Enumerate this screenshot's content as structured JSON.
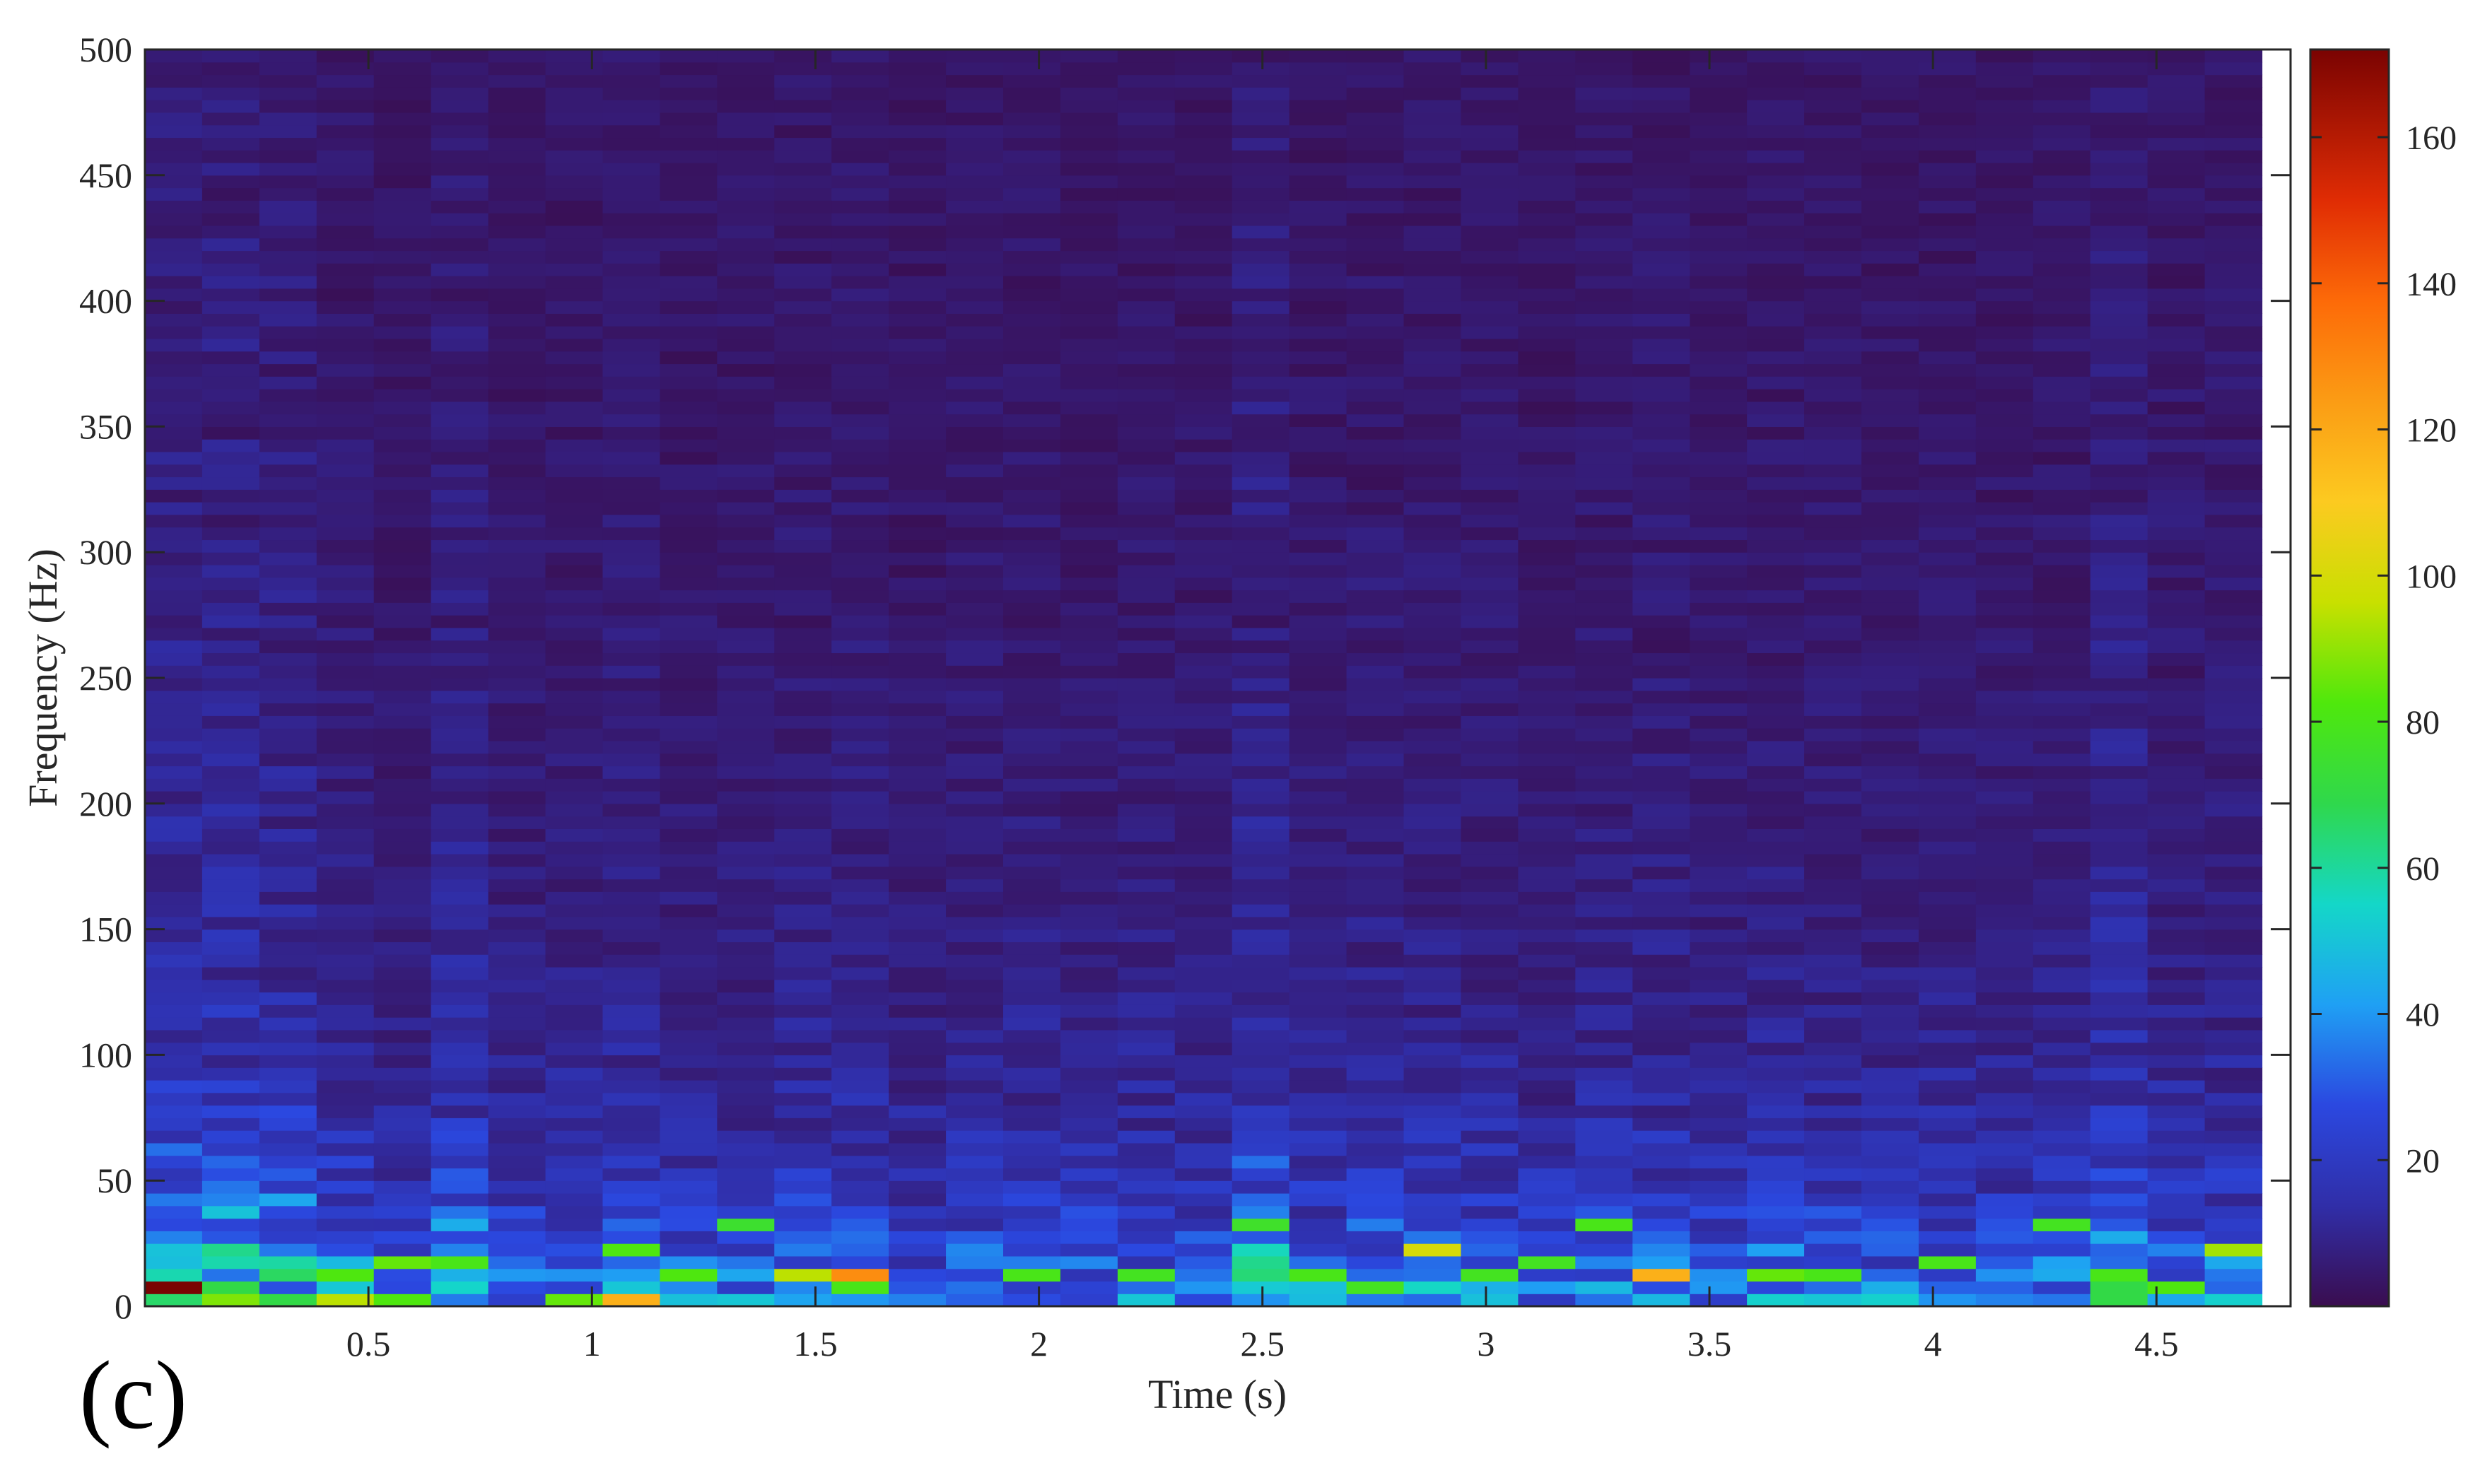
{
  "chart_data": {
    "type": "heatmap",
    "title": "",
    "xlabel": "Time (s)",
    "ylabel": "Frequency (Hz)",
    "xlim": [
      0.0,
      4.8
    ],
    "ylim": [
      0,
      500
    ],
    "xticks": [
      0.5,
      1,
      1.5,
      2,
      2.5,
      3,
      3.5,
      4,
      4.5
    ],
    "xtick_labels": [
      "0.5",
      "1",
      "1.5",
      "2",
      "2.5",
      "3",
      "3.5",
      "4",
      "4.5"
    ],
    "yticks": [
      0,
      50,
      100,
      150,
      200,
      250,
      300,
      350,
      400,
      450,
      500
    ],
    "ytick_labels": [
      "0",
      "50",
      "100",
      "150",
      "200",
      "250",
      "300",
      "350",
      "400",
      "450",
      "500"
    ],
    "colormap": "jet",
    "colorbar": {
      "range": [
        0,
        172
      ],
      "ticks": [
        20,
        40,
        60,
        80,
        100,
        120,
        140,
        160
      ],
      "tick_labels": [
        "20",
        "40",
        "60",
        "80",
        "100",
        "120",
        "140",
        "160"
      ]
    },
    "time_bins": 37,
    "time_bin_width_s": 0.128,
    "frequency_bins": 100,
    "frequency_bin_width_hz": 5,
    "column_energy": [
      1.4,
      1.45,
      1.3,
      0.95,
      0.75,
      1.15,
      0.8,
      0.85,
      0.95,
      0.8,
      0.85,
      0.9,
      0.95,
      0.75,
      0.85,
      0.9,
      0.8,
      0.85,
      0.8,
      1.35,
      0.85,
      0.95,
      0.9,
      0.85,
      0.75,
      0.9,
      0.95,
      0.8,
      0.9,
      0.85,
      0.8,
      0.85,
      0.8,
      0.85,
      1.25,
      0.9,
      0.9
    ],
    "low_frequency_hotspots": [
      {
        "time_bin": 0,
        "freq_hz": 5,
        "value": 172
      },
      {
        "time_bin": 1,
        "freq_hz": 2.5,
        "value": 88
      },
      {
        "time_bin": 3,
        "freq_hz": 12.5,
        "value": 82
      },
      {
        "time_bin": 3,
        "freq_hz": 2.5,
        "value": 95
      },
      {
        "time_bin": 4,
        "freq_hz": 17.5,
        "value": 85
      },
      {
        "time_bin": 4,
        "freq_hz": 2.5,
        "value": 82
      },
      {
        "time_bin": 5,
        "freq_hz": 17.5,
        "value": 80
      },
      {
        "time_bin": 7,
        "freq_hz": 2.5,
        "value": 85
      },
      {
        "time_bin": 8,
        "freq_hz": 22.5,
        "value": 82
      },
      {
        "time_bin": 8,
        "freq_hz": 2.5,
        "value": 118
      },
      {
        "time_bin": 9,
        "freq_hz": 12.5,
        "value": 82
      },
      {
        "time_bin": 10,
        "freq_hz": 32.5,
        "value": 75
      },
      {
        "time_bin": 11,
        "freq_hz": 12.5,
        "value": 95
      },
      {
        "time_bin": 12,
        "freq_hz": 12.5,
        "value": 128
      },
      {
        "time_bin": 12,
        "freq_hz": 7.5,
        "value": 80
      },
      {
        "time_bin": 15,
        "freq_hz": 12.5,
        "value": 80
      },
      {
        "time_bin": 17,
        "freq_hz": 12.5,
        "value": 78
      },
      {
        "time_bin": 19,
        "freq_hz": 32.5,
        "value": 76
      },
      {
        "time_bin": 20,
        "freq_hz": 12.5,
        "value": 80
      },
      {
        "time_bin": 21,
        "freq_hz": 7.5,
        "value": 78
      },
      {
        "time_bin": 22,
        "freq_hz": 22.5,
        "value": 100
      },
      {
        "time_bin": 23,
        "freq_hz": 12.5,
        "value": 78
      },
      {
        "time_bin": 24,
        "freq_hz": 17.5,
        "value": 78
      },
      {
        "time_bin": 25,
        "freq_hz": 32.5,
        "value": 80
      },
      {
        "time_bin": 26,
        "freq_hz": 12.5,
        "value": 118
      },
      {
        "time_bin": 28,
        "freq_hz": 12.5,
        "value": 85
      },
      {
        "time_bin": 29,
        "freq_hz": 12.5,
        "value": 80
      },
      {
        "time_bin": 31,
        "freq_hz": 17.5,
        "value": 80
      },
      {
        "time_bin": 33,
        "freq_hz": 32.5,
        "value": 78
      },
      {
        "time_bin": 34,
        "freq_hz": 12.5,
        "value": 80
      },
      {
        "time_bin": 35,
        "freq_hz": 7.5,
        "value": 82
      },
      {
        "time_bin": 36,
        "freq_hz": 22.5,
        "value": 92
      }
    ]
  },
  "panel_label": "(c)"
}
